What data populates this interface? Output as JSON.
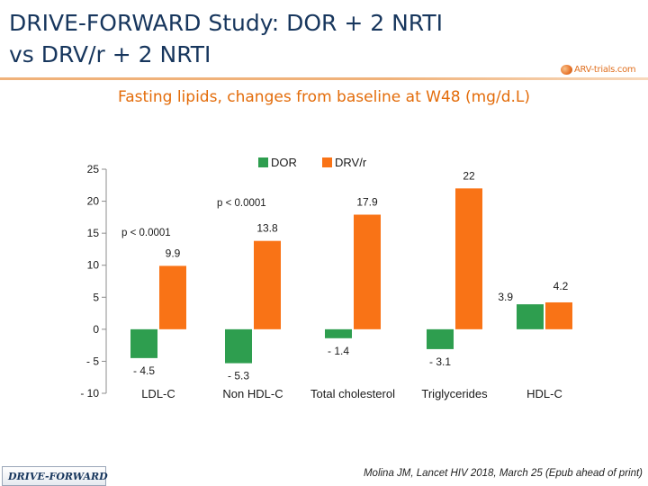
{
  "slide": {
    "title_line1": "DRIVE-FORWARD Study: DOR + 2 NRTI",
    "title_line2": "vs DRV/r + 2 NRTI",
    "logo_text": "ARV-trials.com",
    "subtitle": "Fasting lipids, changes  from baseline at W48 (mg/d.L)",
    "footer_left": "DRIVE-FORWARD",
    "footer_right": "Molina JM, Lancet HIV 2018, March 25 (Epub ahead of print)"
  },
  "colors": {
    "title": "#17365d",
    "subtitle": "#e36c0a",
    "dor": "#2e9e4f",
    "drv": "#f97316"
  },
  "chart_data": {
    "type": "bar",
    "title": "Fasting lipids, changes  from baseline at W48 (mg/d.L)",
    "categories": [
      "LDL-C",
      "Non HDL-C",
      "Total cholesterol",
      "Triglycerides",
      "HDL-C"
    ],
    "series": [
      {
        "name": "DOR",
        "color": "#2e9e4f",
        "values": [
          -4.5,
          -5.3,
          -1.4,
          -3.1,
          3.9
        ],
        "labels": [
          "- 4.5",
          "- 5.3",
          "- 1.4",
          "- 3.1",
          "3.9"
        ]
      },
      {
        "name": "DRV/r",
        "color": "#f97316",
        "values": [
          9.9,
          13.8,
          17.9,
          22,
          4.2
        ],
        "labels": [
          "9.9",
          "13.8",
          "17.9",
          "22",
          "4.2"
        ]
      }
    ],
    "y_ticks": [
      25,
      20,
      15,
      10,
      5,
      0,
      -5,
      -10
    ],
    "y_tick_labels": [
      "25",
      "20",
      "15",
      "10",
      "5",
      "0",
      "- 5",
      "- 10"
    ],
    "ylim": [
      -10,
      25
    ],
    "annotations": [
      {
        "text": "p < 0.0001",
        "category": "LDL-C"
      },
      {
        "text": "p < 0.0001",
        "category": "Non HDL-C"
      }
    ],
    "legend": [
      "DOR",
      "DRV/r"
    ],
    "legend_position": "top"
  }
}
